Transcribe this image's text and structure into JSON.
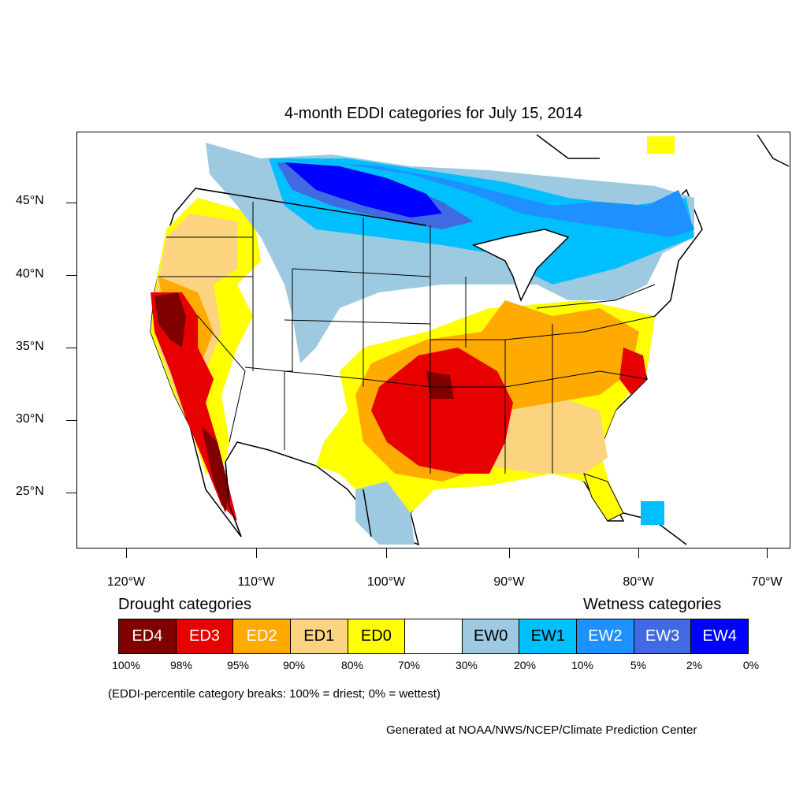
{
  "title": "4-month EDDI categories for July 15, 2014",
  "lat_labels": [
    "45°N",
    "40°N",
    "35°N",
    "30°N",
    "25°N"
  ],
  "lon_labels": [
    "120°W",
    "110°W",
    "100°W",
    "90°W",
    "80°W",
    "70°W"
  ],
  "legend": {
    "drought_heading": "Drought categories",
    "wetness_heading": "Wetness categories",
    "categories": [
      {
        "label": "ED4",
        "color": "#800000",
        "text_color": "#ffffff"
      },
      {
        "label": "ED3",
        "color": "#e60000",
        "text_color": "#ffffff"
      },
      {
        "label": "ED2",
        "color": "#ffaa00",
        "text_color": "#ffffff"
      },
      {
        "label": "ED1",
        "color": "#fcd37f",
        "text_color": "#000000"
      },
      {
        "label": "ED0",
        "color": "#ffff00",
        "text_color": "#000000"
      },
      {
        "label": "",
        "color": "#ffffff",
        "text_color": "#000000"
      },
      {
        "label": "EW0",
        "color": "#9ecae1",
        "text_color": "#000000"
      },
      {
        "label": "EW1",
        "color": "#00bfff",
        "text_color": "#000000"
      },
      {
        "label": "EW2",
        "color": "#1e90ff",
        "text_color": "#ffffff"
      },
      {
        "label": "EW3",
        "color": "#4169e1",
        "text_color": "#ffffff"
      },
      {
        "label": "EW4",
        "color": "#0000ff",
        "text_color": "#ffffff"
      }
    ],
    "breaks": [
      "100%",
      "98%",
      "95%",
      "90%",
      "80%",
      "70%",
      "30%",
      "20%",
      "10%",
      "5%",
      "2%",
      "0%"
    ]
  },
  "note": "(EDDI-percentile category breaks: 100% = driest; 0% = wettest)",
  "credit": "Generated at NOAA/NWS/NCEP/Climate Prediction Center"
}
